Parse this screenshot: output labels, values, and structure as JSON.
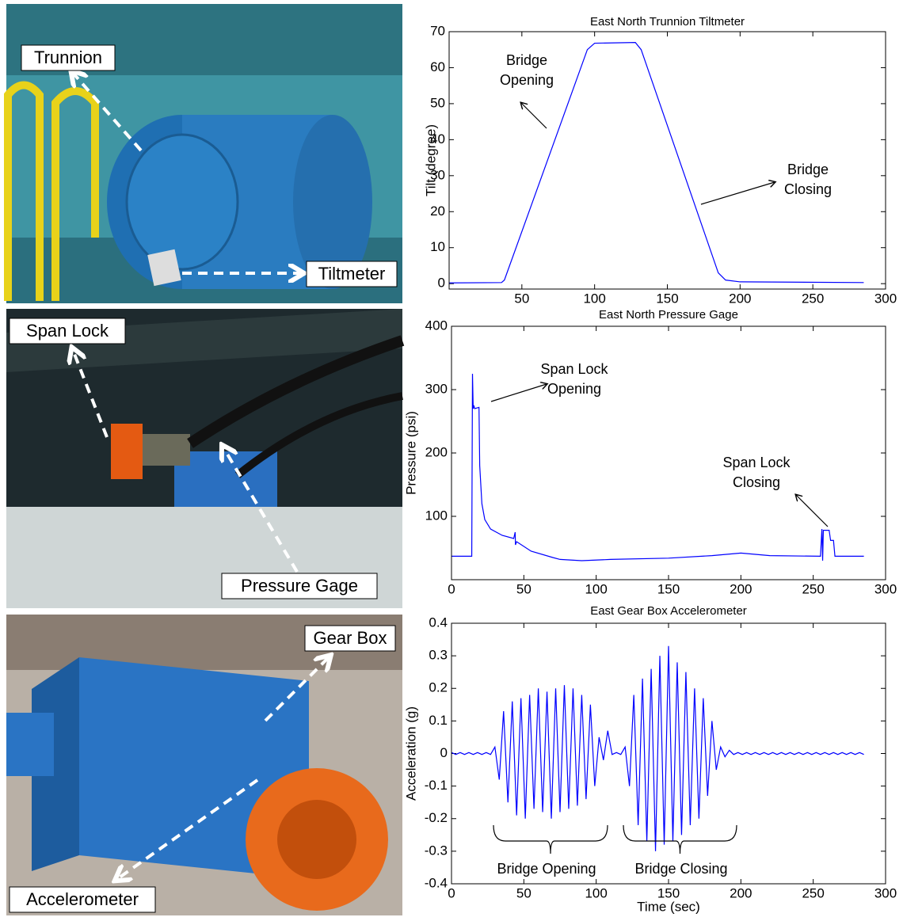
{
  "photos": [
    {
      "labels": [
        "Trunnion",
        "Tiltmeter"
      ]
    },
    {
      "labels": [
        "Span Lock",
        "Pressure Gage"
      ]
    },
    {
      "labels": [
        "Gear Box",
        "Accelerometer"
      ]
    }
  ],
  "chart_data": [
    {
      "type": "line",
      "title": "East North Trunnion Tiltmeter",
      "ylabel": "Tilt (degree)",
      "color": "#0000ff",
      "x": [
        0,
        36,
        38,
        95,
        100,
        128,
        132,
        185,
        190,
        200,
        285
      ],
      "values": [
        0.2,
        0.3,
        1,
        65,
        66.8,
        67,
        65,
        3,
        1,
        0.5,
        0.3
      ],
      "xlim": [
        0,
        300
      ],
      "ylim": [
        -1.5,
        70
      ],
      "xticks": [
        50,
        100,
        150,
        200,
        250,
        300
      ],
      "yticks": [
        0,
        10,
        20,
        30,
        40,
        50,
        60,
        70
      ],
      "annotations": [
        {
          "lines": [
            "Bridge",
            "Opening"
          ]
        },
        {
          "lines": [
            "Bridge",
            "Closing"
          ]
        }
      ]
    },
    {
      "type": "line",
      "title": "East North Pressure Gage",
      "ylabel": "Pressure (psi)",
      "color": "#0000ff",
      "x": [
        0,
        14,
        14.5,
        15,
        15.5,
        16,
        19,
        19.5,
        21,
        23,
        27,
        35,
        43,
        44,
        44.2,
        45,
        55,
        70,
        75,
        90,
        110,
        150,
        180,
        200,
        220,
        255,
        256,
        256.5,
        257,
        261,
        262,
        264,
        265,
        285
      ],
      "values": [
        37,
        37,
        325,
        270,
        275,
        270,
        272,
        180,
        120,
        95,
        80,
        70,
        65,
        75,
        55,
        60,
        45,
        35,
        32,
        30,
        32,
        34,
        38,
        42,
        38,
        37,
        80,
        30,
        78,
        78,
        62,
        62,
        37,
        37
      ],
      "xlim": [
        0,
        300
      ],
      "ylim": [
        0,
        400
      ],
      "xticks": [
        0,
        50,
        100,
        150,
        200,
        250,
        300
      ],
      "yticks": [
        100,
        200,
        300,
        400
      ],
      "annotations": [
        {
          "lines": [
            "Span Lock",
            "Opening"
          ]
        },
        {
          "lines": [
            "Span Lock",
            "Closing"
          ]
        }
      ]
    },
    {
      "type": "line",
      "title": "East Gear Box Accelerometer",
      "ylabel": "Acceleration (g)",
      "xlabel": "Time (sec)",
      "color": "#0000ff",
      "x": [
        0,
        3,
        6,
        9,
        12,
        15,
        18,
        21,
        24,
        27,
        30,
        33,
        36,
        39,
        42,
        45,
        48,
        51,
        54,
        57,
        60,
        63,
        66,
        69,
        72,
        75,
        78,
        81,
        84,
        87,
        90,
        93,
        96,
        99,
        102,
        105,
        108,
        111,
        114,
        117,
        120,
        123,
        126,
        129,
        132,
        135,
        138,
        141,
        144,
        147,
        150,
        153,
        156,
        159,
        162,
        165,
        168,
        171,
        174,
        177,
        180,
        183,
        186,
        189,
        192,
        195,
        198,
        201,
        204,
        207,
        210,
        213,
        216,
        219,
        222,
        225,
        228,
        231,
        234,
        237,
        240,
        243,
        246,
        249,
        252,
        255,
        258,
        261,
        264,
        267,
        270,
        273,
        276,
        279,
        282,
        285
      ],
      "values": [
        0.003,
        -0.003,
        0.003,
        -0.003,
        0.003,
        -0.003,
        0.003,
        -0.003,
        0.003,
        -0.003,
        0.02,
        -0.08,
        0.13,
        -0.15,
        0.16,
        -0.19,
        0.17,
        -0.2,
        0.18,
        -0.17,
        0.2,
        -0.18,
        0.19,
        -0.2,
        0.2,
        -0.18,
        0.21,
        -0.17,
        0.2,
        -0.16,
        0.18,
        -0.14,
        0.15,
        -0.1,
        0.05,
        -0.02,
        0.07,
        -0.003,
        0.003,
        -0.003,
        0.02,
        -0.1,
        0.18,
        -0.22,
        0.23,
        -0.27,
        0.26,
        -0.3,
        0.3,
        -0.28,
        0.33,
        -0.27,
        0.28,
        -0.25,
        0.25,
        -0.22,
        0.2,
        -0.2,
        0.17,
        -0.13,
        0.1,
        -0.05,
        0.02,
        -0.01,
        0.01,
        -0.003,
        0.003,
        -0.003,
        0.003,
        -0.003,
        0.003,
        -0.003,
        0.003,
        -0.003,
        0.003,
        -0.003,
        0.003,
        -0.003,
        0.003,
        -0.003,
        0.003,
        -0.003,
        0.003,
        -0.003,
        0.003,
        -0.003,
        0.003,
        -0.003,
        0.003,
        -0.003,
        0.003,
        -0.003,
        0.003,
        -0.003,
        0.003,
        -0.003
      ],
      "xlim": [
        0,
        300
      ],
      "ylim": [
        -0.4,
        0.4
      ],
      "xticks": [
        0,
        50,
        100,
        150,
        200,
        250,
        300
      ],
      "yticks": [
        -0.4,
        -0.3,
        -0.2,
        -0.1,
        0,
        0.1,
        0.2,
        0.3,
        0.4
      ],
      "annotations": [
        {
          "lines": [
            "Bridge Opening"
          ]
        },
        {
          "lines": [
            "Bridge Closing"
          ]
        }
      ]
    }
  ]
}
